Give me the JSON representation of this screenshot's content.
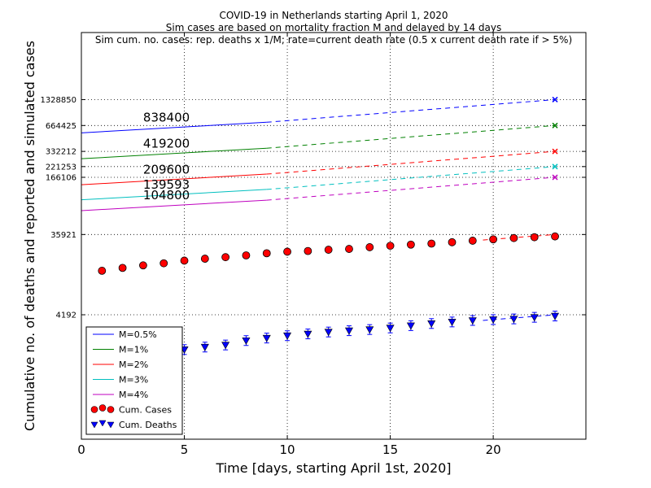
{
  "chart_data": {
    "type": "line",
    "title_lines": [
      "COVID-19 in Netherlands starting April 1, 2020",
      "Sim cases are based on mortality fraction M and delayed by 14 days",
      "Sim cum. no. cases: rep. deaths x 1/M; rate=current death rate (0.5 x current death rate if > 5%)"
    ],
    "xlabel": "Time [days, starting April 1st, 2020]",
    "ylabel": "Cumulative no. of deaths and reported and simulated cases",
    "xlim": [
      0,
      24.5
    ],
    "y_scale": "log",
    "ylim": [
      150,
      8000000
    ],
    "x_ticks": [
      0,
      5,
      10,
      15,
      20
    ],
    "y_ticks": [
      {
        "value": 4192,
        "label": "4192"
      },
      {
        "value": 35921,
        "label": "35921"
      },
      {
        "value": 166106,
        "label": "166106"
      },
      {
        "value": 221253,
        "label": "221253"
      },
      {
        "value": 332212,
        "label": "332212"
      },
      {
        "value": 664425,
        "label": "664425"
      },
      {
        "value": 1328850,
        "label": "1328850"
      }
    ],
    "grid": true,
    "legend": {
      "placement": "lower-left",
      "entries": [
        {
          "label": "M=0.5%",
          "kind": "line",
          "color": "#0000ff"
        },
        {
          "label": "M=1%",
          "kind": "line",
          "color": "#008000"
        },
        {
          "label": "M=2%",
          "kind": "line",
          "color": "#ff0000"
        },
        {
          "label": "M=3%",
          "kind": "line",
          "color": "#00bfbf"
        },
        {
          "label": "M=4%",
          "kind": "line",
          "color": "#bf00bf"
        },
        {
          "label": "Cum. Cases",
          "kind": "circle",
          "color": "#ff0000"
        },
        {
          "label": "Cum. Deaths",
          "kind": "triangle",
          "color": "#0000ff"
        }
      ]
    },
    "sim_series": [
      {
        "name": "M=0.5%",
        "color": "#0000ff",
        "solid": {
          "x": [
            0,
            9
          ],
          "y": [
            546000,
            725000
          ]
        },
        "dashed": {
          "x": [
            9,
            23
          ],
          "y": [
            725000,
            1328850
          ]
        },
        "end_marker": {
          "x": 23,
          "y": 1328850
        }
      },
      {
        "name": "M=1%",
        "color": "#008000",
        "solid": {
          "x": [
            0,
            9
          ],
          "y": [
            273000,
            362000
          ]
        },
        "dashed": {
          "x": [
            9,
            23
          ],
          "y": [
            362000,
            664425
          ]
        },
        "end_marker": {
          "x": 23,
          "y": 664425
        }
      },
      {
        "name": "M=2%",
        "color": "#ff0000",
        "solid": {
          "x": [
            0,
            9
          ],
          "y": [
            136000,
            181000
          ]
        },
        "dashed": {
          "x": [
            9,
            23
          ],
          "y": [
            181000,
            332212
          ]
        },
        "end_marker": {
          "x": 23,
          "y": 332212
        }
      },
      {
        "name": "M=3%",
        "color": "#00bfbf",
        "solid": {
          "x": [
            0,
            9
          ],
          "y": [
            91000,
            120000
          ]
        },
        "dashed": {
          "x": [
            9,
            23
          ],
          "y": [
            120000,
            221253
          ]
        },
        "end_marker": {
          "x": 23,
          "y": 221253
        }
      },
      {
        "name": "M=4%",
        "color": "#bf00bf",
        "solid": {
          "x": [
            0,
            9
          ],
          "y": [
            68000,
            90000
          ]
        },
        "dashed": {
          "x": [
            9,
            23
          ],
          "y": [
            90000,
            166106
          ]
        },
        "end_marker": {
          "x": 23,
          "y": 166106
        }
      }
    ],
    "annotations": [
      {
        "text": "838400",
        "x": 3,
        "y": 838400
      },
      {
        "text": "419200",
        "x": 3,
        "y": 419200
      },
      {
        "text": "209600",
        "x": 3,
        "y": 209600
      },
      {
        "text": "139593",
        "x": 3,
        "y": 139593
      },
      {
        "text": "104800",
        "x": 3,
        "y": 104800
      }
    ],
    "cum_cases": {
      "name": "Cum. Cases",
      "x": [
        1,
        2,
        3,
        4,
        5,
        6,
        7,
        8,
        9,
        10,
        11,
        12,
        13,
        14,
        15,
        16,
        17,
        18,
        19,
        20,
        21,
        22,
        23
      ],
      "y": [
        13614,
        14697,
        15723,
        16627,
        17851,
        18803,
        19580,
        20549,
        21762,
        22696,
        23097,
        23894,
        24413,
        25587,
        26551,
        27419,
        28153,
        29214,
        30449,
        31589,
        32655,
        33405,
        34134
      ]
    },
    "cum_deaths": {
      "name": "Cum. Deaths",
      "x": [
        1,
        2,
        3,
        4,
        5,
        6,
        7,
        8,
        9,
        10,
        11,
        12,
        13,
        14,
        15,
        16,
        17,
        18,
        19,
        20,
        21,
        22,
        23
      ],
      "y": [
        1039,
        1173,
        1339,
        1487,
        1651,
        1766,
        1867,
        2101,
        2248,
        2396,
        2511,
        2643,
        2737,
        2823,
        2945,
        3134,
        3315,
        3459,
        3601,
        3684,
        3751,
        3916,
        4054
      ]
    },
    "cum_deaths_fit": {
      "x": [
        19.5,
        23
      ],
      "y": [
        3600,
        4192
      ]
    },
    "cum_cases_fit": {
      "x": [
        19.5,
        23
      ],
      "y": [
        31000,
        35921
      ]
    }
  }
}
